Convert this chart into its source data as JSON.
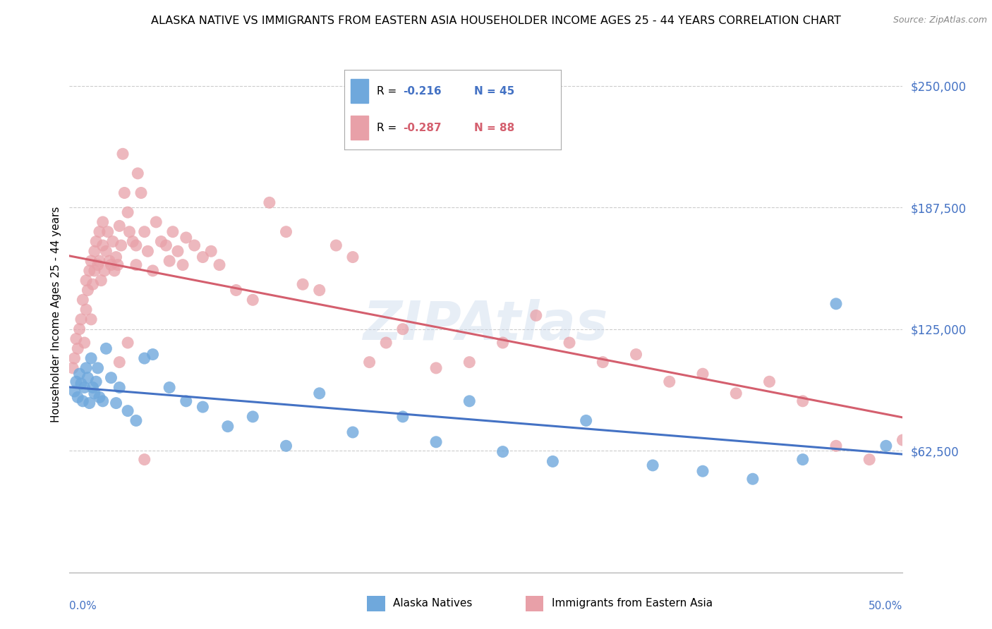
{
  "title": "ALASKA NATIVE VS IMMIGRANTS FROM EASTERN ASIA HOUSEHOLDER INCOME AGES 25 - 44 YEARS CORRELATION CHART",
  "source": "Source: ZipAtlas.com",
  "ylabel": "Householder Income Ages 25 - 44 years",
  "ytick_labels": [
    "$62,500",
    "$125,000",
    "$187,500",
    "$250,000"
  ],
  "ytick_values": [
    62500,
    125000,
    187500,
    250000
  ],
  "ymin": 0,
  "ymax": 265000,
  "xmin": 0.0,
  "xmax": 0.5,
  "watermark": "ZIPAtlas",
  "legend_r1": "R = -0.216",
  "legend_n1": "N = 45",
  "legend_r2": "R = -0.287",
  "legend_n2": "N = 88",
  "color_blue": "#6fa8dc",
  "color_pink": "#e8a0a8",
  "color_blue_line": "#4472c4",
  "color_pink_line": "#d45f6e",
  "alaska_x": [
    0.003,
    0.004,
    0.005,
    0.006,
    0.007,
    0.008,
    0.009,
    0.01,
    0.011,
    0.012,
    0.013,
    0.014,
    0.015,
    0.016,
    0.017,
    0.018,
    0.02,
    0.022,
    0.025,
    0.028,
    0.03,
    0.035,
    0.04,
    0.045,
    0.05,
    0.06,
    0.07,
    0.08,
    0.095,
    0.11,
    0.13,
    0.15,
    0.17,
    0.2,
    0.22,
    0.24,
    0.26,
    0.29,
    0.31,
    0.35,
    0.38,
    0.41,
    0.44,
    0.46,
    0.49
  ],
  "alaska_y": [
    93000,
    98000,
    90000,
    102000,
    97000,
    88000,
    95000,
    105000,
    100000,
    87000,
    110000,
    95000,
    92000,
    98000,
    105000,
    90000,
    88000,
    115000,
    100000,
    87000,
    95000,
    83000,
    78000,
    110000,
    112000,
    95000,
    88000,
    85000,
    75000,
    80000,
    65000,
    92000,
    72000,
    80000,
    67000,
    88000,
    62000,
    57000,
    78000,
    55000,
    52000,
    48000,
    58000,
    138000,
    65000
  ],
  "eastern_x": [
    0.002,
    0.003,
    0.004,
    0.005,
    0.006,
    0.007,
    0.008,
    0.009,
    0.01,
    0.01,
    0.011,
    0.012,
    0.013,
    0.013,
    0.014,
    0.015,
    0.015,
    0.016,
    0.017,
    0.018,
    0.018,
    0.019,
    0.02,
    0.02,
    0.021,
    0.022,
    0.023,
    0.024,
    0.025,
    0.026,
    0.027,
    0.028,
    0.029,
    0.03,
    0.031,
    0.032,
    0.033,
    0.035,
    0.036,
    0.038,
    0.04,
    0.041,
    0.043,
    0.045,
    0.047,
    0.05,
    0.052,
    0.055,
    0.058,
    0.06,
    0.062,
    0.065,
    0.068,
    0.07,
    0.075,
    0.08,
    0.085,
    0.09,
    0.1,
    0.11,
    0.12,
    0.13,
    0.14,
    0.15,
    0.16,
    0.17,
    0.18,
    0.19,
    0.2,
    0.22,
    0.24,
    0.26,
    0.28,
    0.3,
    0.32,
    0.34,
    0.36,
    0.38,
    0.4,
    0.42,
    0.44,
    0.46,
    0.48,
    0.5,
    0.035,
    0.045,
    0.03,
    0.04
  ],
  "eastern_y": [
    105000,
    110000,
    120000,
    115000,
    125000,
    130000,
    140000,
    118000,
    135000,
    150000,
    145000,
    155000,
    130000,
    160000,
    148000,
    165000,
    155000,
    170000,
    158000,
    160000,
    175000,
    150000,
    168000,
    180000,
    155000,
    165000,
    175000,
    160000,
    158000,
    170000,
    155000,
    162000,
    158000,
    178000,
    168000,
    215000,
    195000,
    185000,
    175000,
    170000,
    168000,
    205000,
    195000,
    175000,
    165000,
    155000,
    180000,
    170000,
    168000,
    160000,
    175000,
    165000,
    158000,
    172000,
    168000,
    162000,
    165000,
    158000,
    145000,
    140000,
    190000,
    175000,
    148000,
    145000,
    168000,
    162000,
    108000,
    118000,
    125000,
    105000,
    108000,
    118000,
    132000,
    118000,
    108000,
    112000,
    98000,
    102000,
    92000,
    98000,
    88000,
    65000,
    58000,
    68000,
    118000,
    58000,
    108000,
    158000
  ]
}
